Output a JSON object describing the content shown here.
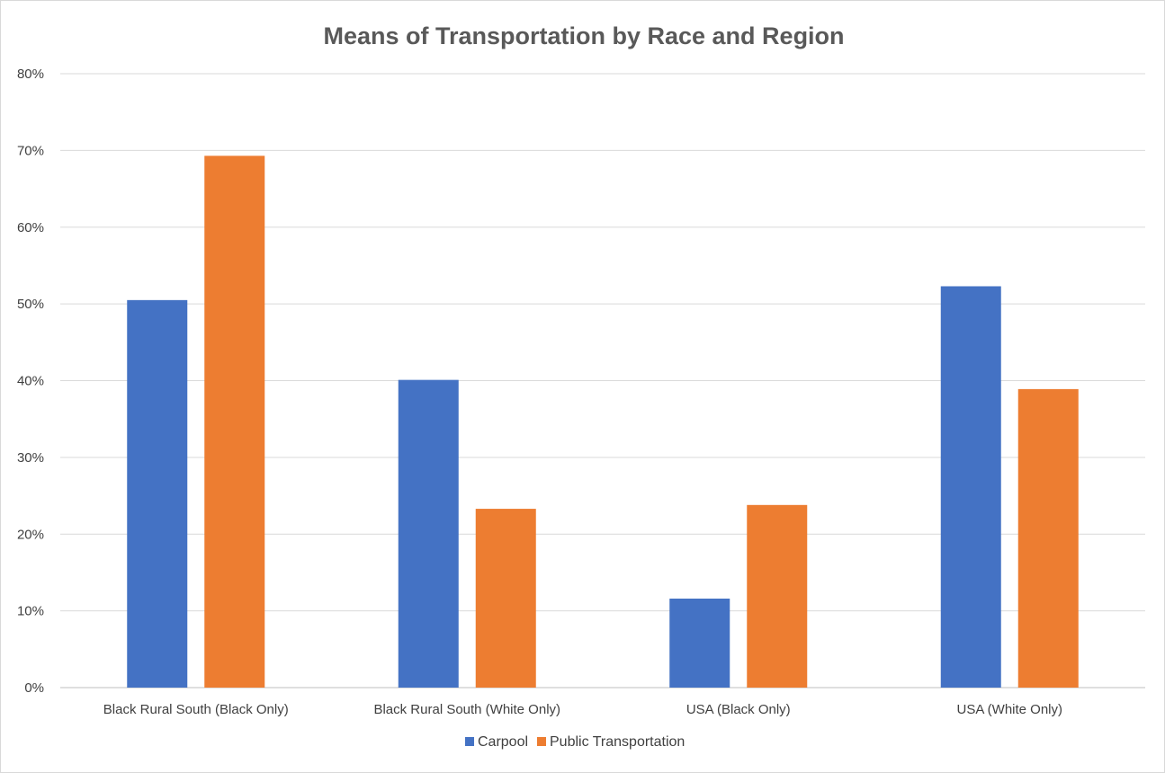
{
  "chart_data": {
    "type": "bar",
    "title": "Means of Transportation by Race and Region",
    "categories": [
      "Black Rural South (Black Only)",
      "Black Rural South (White Only)",
      "USA (Black Only)",
      "USA (White Only)"
    ],
    "series": [
      {
        "name": "Carpool",
        "color": "#4472c4",
        "values": [
          0.505,
          0.401,
          0.116,
          0.523
        ]
      },
      {
        "name": "Public Transportation",
        "color": "#ed7d31",
        "values": [
          0.693,
          0.233,
          0.238,
          0.389
        ]
      }
    ],
    "ylim": [
      0,
      0.8
    ],
    "yticks": [
      "0%",
      "10%",
      "20%",
      "30%",
      "40%",
      "50%",
      "60%",
      "70%",
      "80%"
    ],
    "xlabel": "",
    "ylabel": "",
    "grid": true,
    "legend_position": "bottom"
  }
}
